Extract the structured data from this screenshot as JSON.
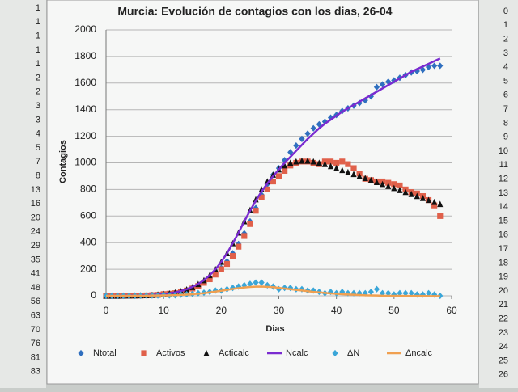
{
  "chart_data": {
    "type": "line",
    "title": "Murcia: Evolución de contagios con los dias, 26-04",
    "xlabel": "Dias",
    "ylabel": "Contagios",
    "x": [
      0,
      1,
      2,
      3,
      4,
      5,
      6,
      7,
      8,
      9,
      10,
      11,
      12,
      13,
      14,
      15,
      16,
      17,
      18,
      19,
      20,
      21,
      22,
      23,
      24,
      25,
      26,
      27,
      28,
      29,
      30,
      31,
      32,
      33,
      34,
      35,
      36,
      37,
      38,
      39,
      40,
      41,
      42,
      43,
      44,
      45,
      46,
      47,
      48,
      49,
      50,
      51,
      52,
      53,
      54,
      55,
      56,
      57,
      58
    ],
    "xlim": [
      0,
      60
    ],
    "xticks": [
      0,
      10,
      20,
      30,
      40,
      50,
      60
    ],
    "ylim": [
      0,
      2000
    ],
    "yticks": [
      0,
      200,
      400,
      600,
      800,
      1000,
      1200,
      1400,
      1600,
      1800,
      2000
    ],
    "grid": true,
    "legend": "bottom",
    "series": [
      {
        "name": "Ntotal",
        "color": "#2f6fbf",
        "style": "diamond",
        "values": [
          0,
          0,
          0,
          0,
          1,
          1,
          2,
          3,
          5,
          7,
          13,
          16,
          20,
          29,
          41,
          56,
          76,
          100,
          130,
          170,
          210,
          260,
          320,
          390,
          470,
          560,
          660,
          760,
          840,
          910,
          960,
          1020,
          1080,
          1130,
          1180,
          1220,
          1260,
          1290,
          1310,
          1340,
          1360,
          1390,
          1410,
          1430,
          1450,
          1470,
          1500,
          1570,
          1590,
          1610,
          1620,
          1640,
          1660,
          1680,
          1690,
          1700,
          1720,
          1730,
          1730
        ]
      },
      {
        "name": "Activos",
        "color": "#e0604a",
        "style": "square",
        "values": [
          0,
          0,
          0,
          0,
          1,
          1,
          2,
          3,
          5,
          7,
          13,
          16,
          20,
          29,
          40,
          55,
          74,
          98,
          125,
          160,
          200,
          240,
          300,
          370,
          450,
          540,
          640,
          740,
          800,
          860,
          900,
          940,
          980,
          1000,
          1010,
          1010,
          1000,
          990,
          1010,
          1010,
          1000,
          1010,
          990,
          960,
          920,
          880,
          870,
          860,
          860,
          850,
          840,
          830,
          800,
          780,
          770,
          750,
          720,
          680,
          600
        ]
      },
      {
        "name": "Acticalc",
        "color": "#111111",
        "style": "triangle",
        "values": [
          0,
          0,
          0,
          1,
          1,
          2,
          3,
          4,
          6,
          9,
          13,
          18,
          25,
          35,
          48,
          65,
          88,
          117,
          155,
          200,
          255,
          320,
          395,
          475,
          560,
          645,
          725,
          800,
          860,
          910,
          950,
          980,
          1000,
          1010,
          1015,
          1015,
          1010,
          1000,
          990,
          975,
          960,
          945,
          930,
          915,
          900,
          885,
          870,
          855,
          840,
          825,
          810,
          795,
          780,
          765,
          750,
          735,
          720,
          705,
          690
        ]
      },
      {
        "name": "Ncalc",
        "color": "#7a2bd0",
        "style": "line",
        "values": [
          0,
          0,
          1,
          1,
          2,
          3,
          4,
          5,
          7,
          10,
          14,
          19,
          26,
          36,
          50,
          68,
          90,
          118,
          155,
          200,
          255,
          320,
          395,
          475,
          560,
          640,
          715,
          785,
          845,
          900,
          950,
          1000,
          1045,
          1090,
          1135,
          1180,
          1220,
          1260,
          1295,
          1325,
          1355,
          1385,
          1410,
          1435,
          1460,
          1485,
          1510,
          1535,
          1560,
          1585,
          1610,
          1635,
          1660,
          1685,
          1705,
          1725,
          1745,
          1765,
          1785
        ]
      },
      {
        "name": "ΔN",
        "color": "#3aa6d8",
        "style": "diamond",
        "values": [
          0,
          0,
          0,
          0,
          0,
          0,
          1,
          1,
          2,
          2,
          6,
          3,
          4,
          9,
          12,
          15,
          20,
          24,
          30,
          40,
          40,
          50,
          60,
          70,
          80,
          90,
          100,
          100,
          80,
          70,
          50,
          60,
          60,
          50,
          50,
          40,
          40,
          30,
          20,
          30,
          20,
          30,
          20,
          20,
          20,
          20,
          30,
          50,
          20,
          20,
          10,
          20,
          20,
          20,
          10,
          10,
          20,
          10,
          0
        ]
      },
      {
        "name": "Δncalc",
        "color": "#f0a050",
        "style": "line",
        "values": [
          0,
          0,
          0,
          0,
          0,
          1,
          1,
          1,
          2,
          2,
          3,
          4,
          5,
          7,
          9,
          12,
          16,
          20,
          26,
          32,
          38,
          45,
          52,
          58,
          63,
          67,
          69,
          70,
          68,
          65,
          60,
          55,
          50,
          45,
          40,
          35,
          30,
          26,
          22,
          18,
          15,
          12,
          10,
          8,
          6,
          4,
          3,
          2,
          1,
          0,
          0,
          0,
          -1,
          -1,
          -1,
          -1,
          -2,
          -2,
          -2
        ]
      }
    ]
  },
  "sheet": {
    "left": [
      1,
      1,
      1,
      1,
      1,
      2,
      2,
      3,
      3,
      4,
      5,
      7,
      8,
      13,
      16,
      20,
      24,
      29,
      35,
      41,
      48,
      56,
      63,
      70,
      76,
      81,
      83
    ],
    "right": [
      0,
      1,
      2,
      3,
      4,
      5,
      6,
      7,
      8,
      9,
      10,
      11,
      12,
      13,
      14,
      15,
      16,
      17,
      18,
      19,
      20,
      21,
      22,
      23,
      24,
      25,
      26
    ]
  }
}
